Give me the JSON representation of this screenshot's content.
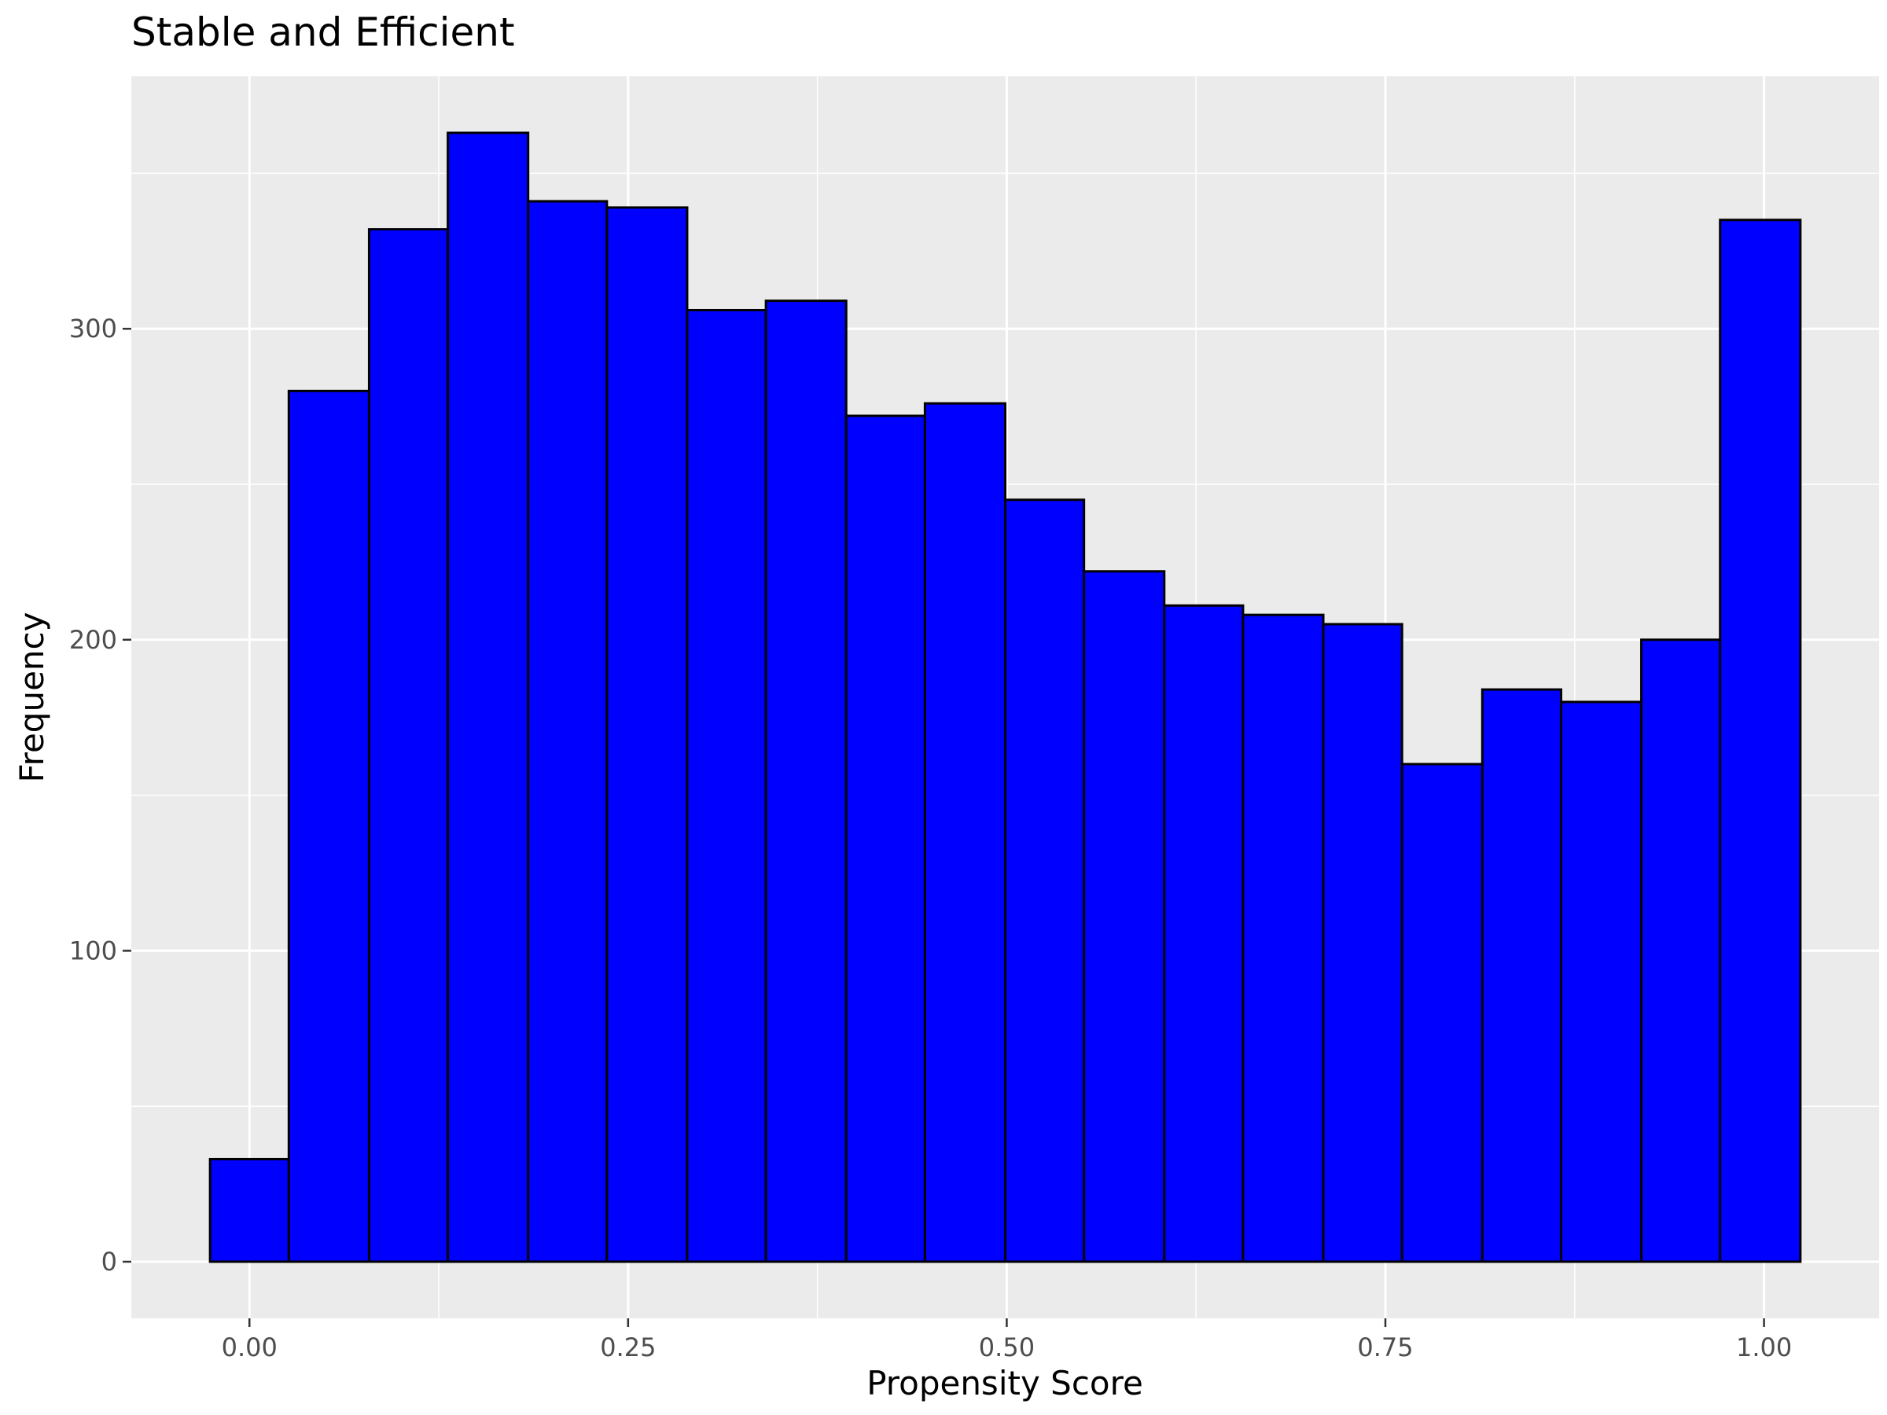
{
  "chart_data": {
    "type": "bar",
    "subtype": "histogram",
    "title": "Stable and Efficient",
    "xlabel": "Propensity Score",
    "ylabel": "Frequency",
    "bins": [
      {
        "x0": -0.026,
        "x1": 0.026,
        "count": 33
      },
      {
        "x0": 0.026,
        "x1": 0.079,
        "count": 280
      },
      {
        "x0": 0.079,
        "x1": 0.131,
        "count": 332
      },
      {
        "x0": 0.131,
        "x1": 0.184,
        "count": 363
      },
      {
        "x0": 0.184,
        "x1": 0.236,
        "count": 341
      },
      {
        "x0": 0.236,
        "x1": 0.289,
        "count": 339
      },
      {
        "x0": 0.289,
        "x1": 0.341,
        "count": 306
      },
      {
        "x0": 0.341,
        "x1": 0.394,
        "count": 309
      },
      {
        "x0": 0.394,
        "x1": 0.446,
        "count": 272
      },
      {
        "x0": 0.446,
        "x1": 0.499,
        "count": 276
      },
      {
        "x0": 0.499,
        "x1": 0.551,
        "count": 245
      },
      {
        "x0": 0.551,
        "x1": 0.604,
        "count": 222
      },
      {
        "x0": 0.604,
        "x1": 0.656,
        "count": 211
      },
      {
        "x0": 0.656,
        "x1": 0.709,
        "count": 208
      },
      {
        "x0": 0.709,
        "x1": 0.761,
        "count": 205
      },
      {
        "x0": 0.761,
        "x1": 0.814,
        "count": 160
      },
      {
        "x0": 0.814,
        "x1": 0.866,
        "count": 184
      },
      {
        "x0": 0.866,
        "x1": 0.919,
        "count": 180
      },
      {
        "x0": 0.919,
        "x1": 0.971,
        "count": 200
      },
      {
        "x0": 0.971,
        "x1": 1.024,
        "count": 335
      }
    ],
    "xlim": [
      -0.078,
      1.076
    ],
    "ylim": [
      -18.2,
      381.2
    ],
    "x_ticks": [
      {
        "value": 0.0,
        "label": "0.00"
      },
      {
        "value": 0.25,
        "label": "0.25"
      },
      {
        "value": 0.5,
        "label": "0.50"
      },
      {
        "value": 0.75,
        "label": "0.75"
      },
      {
        "value": 1.0,
        "label": "1.00"
      }
    ],
    "y_ticks": [
      {
        "value": 0,
        "label": "0"
      },
      {
        "value": 100,
        "label": "100"
      },
      {
        "value": 200,
        "label": "200"
      },
      {
        "value": 300,
        "label": "300"
      }
    ],
    "x_minor": [
      0.125,
      0.375,
      0.625,
      0.875
    ],
    "y_minor": [
      50,
      150,
      250,
      350
    ],
    "bar_fill": "#0000ff",
    "bar_stroke": "#000000",
    "panel_background": "#ebebeb",
    "grid_color": "#ffffff",
    "grid": true,
    "legend": "none"
  }
}
